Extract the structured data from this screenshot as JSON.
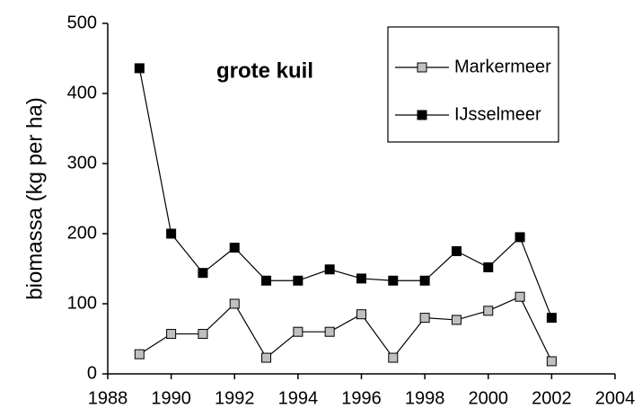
{
  "chart_data": {
    "type": "line",
    "title": "grote kuil",
    "y_label": "biomassa (kg per ha)",
    "x": [
      1989,
      1990,
      1991,
      1992,
      1993,
      1994,
      1995,
      1996,
      1997,
      1998,
      1999,
      2000,
      2001,
      2002
    ],
    "series": [
      {
        "name": "Markermeer",
        "color": "#c0c0c0",
        "values": [
          28,
          57,
          57,
          100,
          23,
          60,
          60,
          85,
          23,
          80,
          77,
          90,
          110,
          18
        ]
      },
      {
        "name": "IJsselmeer",
        "color": "#000000",
        "values": [
          436,
          200,
          144,
          180,
          133,
          133,
          149,
          136,
          133,
          133,
          175,
          152,
          195,
          80
        ]
      }
    ],
    "xlim": [
      1988,
      2004
    ],
    "xticks": [
      1988,
      1990,
      1992,
      1994,
      1996,
      1998,
      2000,
      2002,
      2004
    ],
    "ylim": [
      0,
      500
    ],
    "yticks": [
      0,
      100,
      200,
      300,
      400,
      500
    ],
    "grid": false,
    "legend": "upper right"
  }
}
